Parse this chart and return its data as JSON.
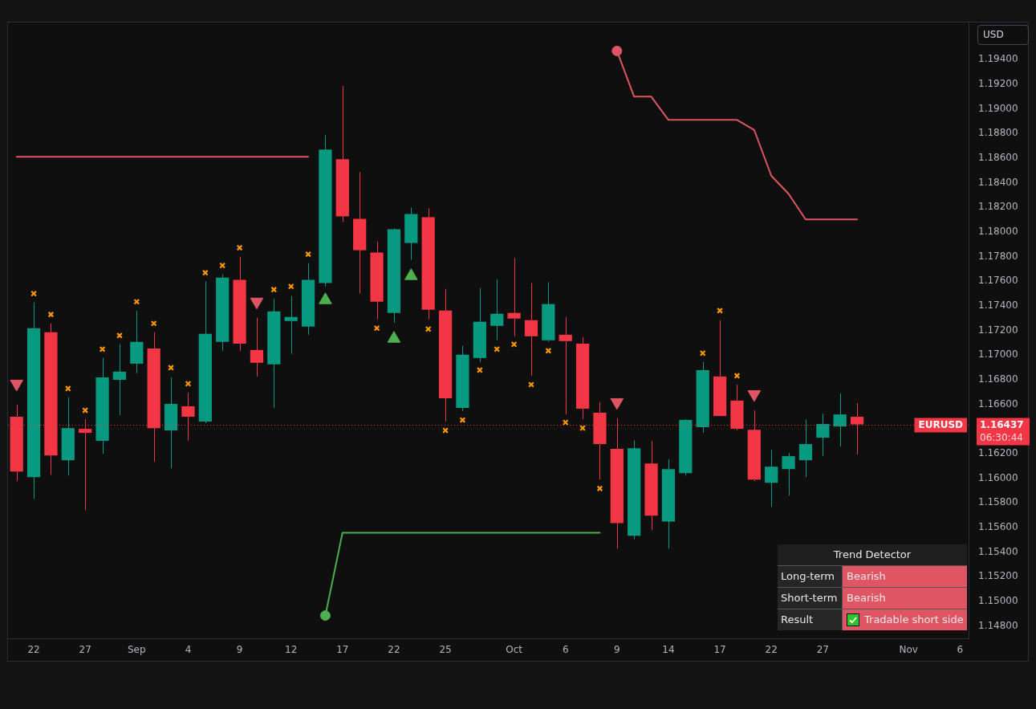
{
  "chart_data": {
    "type": "candlestick",
    "ylabel": "USD",
    "categories": [
      null,
      "22",
      null,
      null,
      "27",
      null,
      null,
      "Sep",
      null,
      null,
      "4",
      null,
      null,
      "9",
      null,
      null,
      "12",
      null,
      null,
      "17",
      null,
      null,
      "22",
      null,
      null,
      "25",
      null,
      null,
      null,
      "Oct",
      null,
      null,
      "6",
      null,
      null,
      "9",
      null,
      null,
      "14",
      null,
      null,
      "17",
      null,
      null,
      "22",
      null,
      null,
      "27",
      null,
      null,
      null,
      null,
      "Nov",
      null,
      null,
      "6"
    ],
    "ohlc": [
      [
        1.16499,
        1.16597,
        1.15976,
        1.16055
      ],
      [
        1.16009,
        1.17427,
        1.15832,
        1.17218
      ],
      [
        1.17185,
        1.17257,
        1.16028,
        1.16185
      ],
      [
        1.16146,
        1.16656,
        1.16022,
        1.16407
      ],
      [
        1.16401,
        1.16479,
        1.15741,
        1.16368
      ],
      [
        1.16303,
        1.16976,
        1.16198,
        1.16819
      ],
      [
        1.16799,
        1.17087,
        1.16512,
        1.16865
      ],
      [
        1.1693,
        1.17361,
        1.16852,
        1.17107
      ],
      [
        1.17054,
        1.17185,
        1.16133,
        1.16407
      ],
      [
        1.16388,
        1.16819,
        1.16081,
        1.16603
      ],
      [
        1.16584,
        1.16695,
        1.16303,
        1.16499
      ],
      [
        1.1646,
        1.17597,
        1.16447,
        1.17172
      ],
      [
        1.17107,
        1.17655,
        1.17035,
        1.17629
      ],
      [
        1.1761,
        1.17799,
        1.17035,
        1.17093
      ],
      [
        1.17041,
        1.17303,
        1.16826,
        1.16937
      ],
      [
        1.16924,
        1.17459,
        1.16571,
        1.17355
      ],
      [
        1.17276,
        1.17479,
        1.17009,
        1.17309
      ],
      [
        1.17231,
        1.17747,
        1.17165,
        1.1761
      ],
      [
        1.17584,
        1.18786,
        1.17557,
        1.18668
      ],
      [
        1.1859,
        1.19184,
        1.1808,
        1.18126
      ],
      [
        1.18106,
        1.18485,
        1.17499,
        1.17851
      ],
      [
        1.17832,
        1.17923,
        1.1729,
        1.17433
      ],
      [
        1.17342,
        1.18028,
        1.17263,
        1.18021
      ],
      [
        1.1791,
        1.18198,
        1.17773,
        1.18145
      ],
      [
        1.18119,
        1.18191,
        1.1729,
        1.17368
      ],
      [
        1.17361,
        1.17538,
        1.1646,
        1.16649
      ],
      [
        1.16571,
        1.17074,
        1.16545,
        1.17002
      ],
      [
        1.16976,
        1.17544,
        1.16943,
        1.1727
      ],
      [
        1.17237,
        1.17616,
        1.1712,
        1.17335
      ],
      [
        1.17342,
        1.17786,
        1.17152,
        1.17296
      ],
      [
        1.17283,
        1.17584,
        1.16832,
        1.17152
      ],
      [
        1.1712,
        1.1759,
        1.17107,
        1.17414
      ],
      [
        1.17165,
        1.17309,
        1.16518,
        1.17113
      ],
      [
        1.17093,
        1.17146,
        1.16479,
        1.16564
      ],
      [
        1.16532,
        1.16617,
        1.15989,
        1.16277
      ],
      [
        1.16238,
        1.16486,
        1.15427,
        1.15636
      ],
      [
        1.15532,
        1.16309,
        1.15506,
        1.16244
      ],
      [
        1.1612,
        1.16303,
        1.15578,
        1.15695
      ],
      [
        1.15649,
        1.16153,
        1.15427,
        1.16074
      ],
      [
        1.16042,
        1.16479,
        1.16022,
        1.16473
      ],
      [
        1.16414,
        1.16943,
        1.16368,
        1.16878
      ],
      [
        1.16826,
        1.17283,
        1.16505,
        1.16505
      ],
      [
        1.1663,
        1.1676,
        1.16388,
        1.16401
      ],
      [
        1.16394,
        1.16551,
        1.15976,
        1.15989
      ],
      [
        1.15963,
        1.16231,
        1.15767,
        1.16094
      ],
      [
        1.16074,
        1.16205,
        1.15859,
        1.16179
      ],
      [
        1.16146,
        1.16479,
        1.16009,
        1.16277
      ],
      [
        1.16329,
        1.16525,
        1.16179,
        1.1644
      ],
      [
        1.1642,
        1.16688,
        1.16257,
        1.16518
      ],
      [
        1.16499,
        1.1661,
        1.16192,
        1.16437
      ],
      null,
      null,
      null,
      null,
      null,
      null
    ],
    "ylim": [
      1.147,
      1.197
    ],
    "yticks": [
      {
        "value": 1.148,
        "label": "1.14800"
      },
      {
        "value": 1.15,
        "label": "1.15000"
      },
      {
        "value": 1.152,
        "label": "1.15200"
      },
      {
        "value": 1.154,
        "label": "1.15400"
      },
      {
        "value": 1.156,
        "label": "1.15600"
      },
      {
        "value": 1.158,
        "label": "1.15800"
      },
      {
        "value": 1.16,
        "label": "1.16000"
      },
      {
        "value": 1.162,
        "label": "1.16200"
      },
      {
        "value": 1.166,
        "label": "1.16600"
      },
      {
        "value": 1.168,
        "label": "1.16800"
      },
      {
        "value": 1.17,
        "label": "1.17000"
      },
      {
        "value": 1.172,
        "label": "1.17200"
      },
      {
        "value": 1.174,
        "label": "1.17400"
      },
      {
        "value": 1.176,
        "label": "1.17600"
      },
      {
        "value": 1.178,
        "label": "1.17800"
      },
      {
        "value": 1.18,
        "label": "1.18000"
      },
      {
        "value": 1.182,
        "label": "1.18200"
      },
      {
        "value": 1.184,
        "label": "1.18400"
      },
      {
        "value": 1.186,
        "label": "1.18600"
      },
      {
        "value": 1.188,
        "label": "1.18800"
      },
      {
        "value": 1.19,
        "label": "1.19000"
      },
      {
        "value": 1.192,
        "label": "1.19200"
      },
      {
        "value": 1.194,
        "label": "1.19400"
      }
    ],
    "series": [
      {
        "type": "line",
        "color": "#e05563",
        "values": [
          1.18609,
          1.18609,
          1.18609,
          1.18609,
          1.18609,
          1.18609,
          1.18609,
          1.18609,
          1.18609,
          1.18609,
          1.18609,
          1.18609,
          1.18609,
          1.18609,
          1.18609,
          1.18609,
          1.18609,
          1.18609,
          null,
          null,
          null,
          null,
          null,
          null,
          null,
          null,
          null,
          null,
          null,
          null,
          null,
          null,
          null,
          null,
          null,
          1.19469,
          1.19098,
          1.19098,
          1.18909,
          1.18909,
          1.18909,
          1.18909,
          1.18909,
          1.18828,
          1.18455,
          1.1831,
          1.18101,
          1.18101,
          1.18101,
          1.18101,
          null,
          null,
          null,
          null,
          null,
          null
        ]
      },
      {
        "type": "line",
        "color": "#4caf50",
        "values": [
          null,
          null,
          null,
          null,
          null,
          null,
          null,
          null,
          null,
          null,
          null,
          null,
          null,
          null,
          null,
          null,
          null,
          null,
          1.14885,
          1.15558,
          1.15558,
          1.15558,
          1.15558,
          1.15558,
          1.15558,
          1.15558,
          1.15558,
          1.15558,
          1.15558,
          1.15558,
          1.15558,
          1.15558,
          1.15558,
          1.15558,
          1.15558,
          null,
          null,
          null,
          null,
          null,
          null,
          null,
          null,
          null,
          null,
          null,
          null,
          null,
          null,
          null,
          null,
          null,
          null,
          null,
          null,
          null
        ]
      },
      {
        "type": "scatter",
        "marker": "circle",
        "color": "#e05563",
        "values": [
          null,
          null,
          null,
          null,
          null,
          null,
          null,
          null,
          null,
          null,
          null,
          null,
          null,
          null,
          null,
          null,
          null,
          null,
          null,
          null,
          null,
          null,
          null,
          null,
          null,
          null,
          null,
          null,
          null,
          null,
          null,
          null,
          null,
          null,
          null,
          1.19469,
          null,
          null,
          null,
          null,
          null,
          null,
          null,
          null,
          null,
          null,
          null,
          null,
          null,
          null,
          null,
          null,
          null,
          null,
          null,
          null
        ]
      },
      {
        "type": "scatter",
        "marker": "circle",
        "color": "#4caf50",
        "values": [
          null,
          null,
          null,
          null,
          null,
          null,
          null,
          null,
          null,
          null,
          null,
          null,
          null,
          null,
          null,
          null,
          null,
          null,
          1.14885,
          null,
          null,
          null,
          null,
          null,
          null,
          null,
          null,
          null,
          null,
          null,
          null,
          null,
          null,
          null,
          null,
          null,
          null,
          null,
          null,
          null,
          null,
          null,
          null,
          null,
          null,
          null,
          null,
          null,
          null,
          null,
          null,
          null,
          null,
          null,
          null,
          null
        ]
      },
      {
        "type": "scatter",
        "marker": "cross",
        "color": "#ff9800",
        "values": [
          null,
          1.17499,
          1.17329,
          1.16728,
          1.16551,
          1.17048,
          1.17159,
          1.17433,
          1.17257,
          1.16897,
          1.16767,
          1.17668,
          1.17727,
          1.17871,
          null,
          1.17531,
          1.17557,
          1.17819,
          null,
          null,
          null,
          1.17218,
          null,
          null,
          1.17211,
          1.16388,
          1.16473,
          1.16878,
          1.17048,
          1.17087,
          1.1676,
          1.17035,
          1.16453,
          1.16407,
          1.15917,
          null,
          null,
          null,
          null,
          null,
          1.17015,
          1.17361,
          1.16832,
          null,
          null,
          null,
          null,
          null,
          null,
          null,
          null,
          null,
          null,
          null,
          null,
          null
        ]
      },
      {
        "type": "scatter",
        "marker": "triangle",
        "color": "#4caf50",
        "values": [
          null,
          null,
          null,
          null,
          null,
          null,
          null,
          null,
          null,
          null,
          null,
          null,
          null,
          null,
          null,
          null,
          null,
          null,
          1.17446,
          null,
          null,
          null,
          1.17133,
          1.17642,
          null,
          null,
          null,
          null,
          null,
          null,
          null,
          null,
          null,
          null,
          null,
          null,
          null,
          null,
          null,
          null,
          null,
          null,
          null,
          null,
          null,
          null,
          null,
          null,
          null,
          null,
          null,
          null,
          null,
          null,
          null,
          null
        ]
      },
      {
        "type": "scatter",
        "marker": "triangle",
        "color": "#e05563",
        "values": [
          1.16767,
          null,
          null,
          null,
          null,
          null,
          null,
          null,
          null,
          null,
          null,
          null,
          null,
          null,
          1.17433,
          null,
          null,
          null,
          null,
          null,
          null,
          null,
          null,
          null,
          null,
          null,
          null,
          null,
          null,
          null,
          null,
          null,
          null,
          null,
          null,
          1.16617,
          null,
          null,
          null,
          null,
          null,
          null,
          null,
          1.16682,
          null,
          null,
          null,
          null,
          null,
          null,
          null,
          null,
          null,
          null,
          null,
          null
        ]
      }
    ],
    "ref_lines": [
      {
        "axis": "y",
        "value": 1.16437,
        "label": "EURUSD",
        "color": "#f23645",
        "line_style": "dotted"
      }
    ],
    "annotations": [
      "1.16437",
      "06:30:44",
      "Trend Detector",
      "Long-term",
      "Bearish",
      "Short-term",
      "Bearish",
      "Result",
      "Tradable short side"
    ]
  }
}
